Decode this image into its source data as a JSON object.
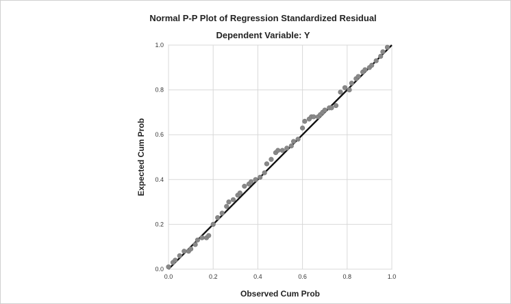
{
  "chart_data": {
    "type": "scatter",
    "title": "Normal P-P Plot of Regression Standardized Residual",
    "subtitle": "Dependent Variable: Y",
    "xlabel": "Observed Cum Prob",
    "ylabel": "Expected Cum Prob",
    "xlim": [
      0.0,
      1.0
    ],
    "ylim": [
      0.0,
      1.0
    ],
    "grid": true,
    "xticks": [
      0.0,
      0.2,
      0.4,
      0.6,
      0.8,
      1.0
    ],
    "yticks": [
      0.0,
      0.2,
      0.4,
      0.6,
      0.8,
      1.0
    ],
    "xtick_labels": [
      "0.0",
      "0.2",
      "0.4",
      "0.6",
      "0.8",
      "1.0"
    ],
    "ytick_labels": [
      "0.0",
      "0.2",
      "0.4",
      "0.6",
      "0.8",
      "1.0"
    ],
    "reference_line": {
      "x": [
        0.0,
        1.0
      ],
      "y": [
        0.0,
        1.0
      ]
    },
    "points": {
      "x": [
        0.0,
        0.02,
        0.03,
        0.05,
        0.07,
        0.09,
        0.1,
        0.12,
        0.13,
        0.15,
        0.17,
        0.18,
        0.2,
        0.22,
        0.24,
        0.26,
        0.27,
        0.29,
        0.31,
        0.32,
        0.34,
        0.36,
        0.37,
        0.39,
        0.41,
        0.43,
        0.44,
        0.46,
        0.48,
        0.49,
        0.51,
        0.53,
        0.55,
        0.56,
        0.58,
        0.6,
        0.61,
        0.63,
        0.64,
        0.65,
        0.67,
        0.68,
        0.69,
        0.7,
        0.72,
        0.73,
        0.75,
        0.77,
        0.79,
        0.81,
        0.82,
        0.84,
        0.85,
        0.87,
        0.88,
        0.9,
        0.91,
        0.93,
        0.95,
        0.96,
        0.98
      ],
      "y": [
        0.01,
        0.03,
        0.04,
        0.06,
        0.08,
        0.08,
        0.09,
        0.11,
        0.13,
        0.14,
        0.14,
        0.15,
        0.2,
        0.23,
        0.25,
        0.28,
        0.3,
        0.31,
        0.33,
        0.34,
        0.37,
        0.38,
        0.39,
        0.4,
        0.41,
        0.43,
        0.47,
        0.49,
        0.52,
        0.53,
        0.53,
        0.54,
        0.55,
        0.57,
        0.58,
        0.63,
        0.66,
        0.67,
        0.68,
        0.68,
        0.68,
        0.69,
        0.7,
        0.71,
        0.72,
        0.72,
        0.73,
        0.79,
        0.81,
        0.8,
        0.83,
        0.85,
        0.86,
        0.88,
        0.89,
        0.9,
        0.91,
        0.93,
        0.95,
        0.97,
        0.99
      ]
    },
    "colors": {
      "points": "#888888",
      "reference_line": "#111111",
      "grid": "#d8d8d8"
    }
  }
}
